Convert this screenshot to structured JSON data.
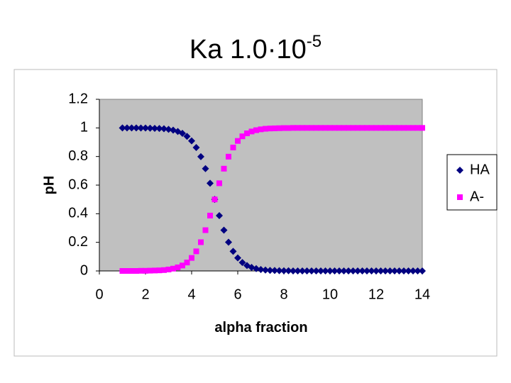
{
  "chart_data": {
    "type": "scatter",
    "title": "Ka 1.0·10",
    "title_superscript": "-5",
    "x_label": "alpha fraction",
    "y_label": "pH",
    "x": [
      1,
      1.2,
      1.4,
      1.6,
      1.8,
      2,
      2.2,
      2.4,
      2.6,
      2.8,
      3,
      3.2,
      3.4,
      3.6,
      3.8,
      4,
      4.2,
      4.4,
      4.6,
      4.8,
      5,
      5.2,
      5.4,
      5.6,
      5.8,
      6,
      6.2,
      6.4,
      6.6,
      6.8,
      7,
      7.2,
      7.4,
      7.6,
      7.8,
      8,
      8.2,
      8.4,
      8.6,
      8.8,
      9,
      9.2,
      9.4,
      9.6,
      9.8,
      10,
      10.2,
      10.4,
      10.6,
      10.8,
      11,
      11.2,
      11.4,
      11.6,
      11.8,
      12,
      12.2,
      12.4,
      12.6,
      12.8,
      13,
      13.2,
      13.4,
      13.6,
      13.8,
      14
    ],
    "series": [
      {
        "name": "HA",
        "color": "#000080",
        "marker": "diamond",
        "values": [
          1,
          1,
          1,
          1,
          0.999,
          0.999,
          0.998,
          0.997,
          0.996,
          0.994,
          0.99,
          0.984,
          0.975,
          0.962,
          0.941,
          0.909,
          0.863,
          0.799,
          0.715,
          0.613,
          0.5,
          0.387,
          0.285,
          0.201,
          0.137,
          0.091,
          0.059,
          0.038,
          0.025,
          0.016,
          0.01,
          0.006,
          0.004,
          0.003,
          0.002,
          0.001,
          0.001,
          0,
          0,
          0,
          0,
          0,
          0,
          0,
          0,
          0,
          0,
          0,
          0,
          0,
          0,
          0,
          0,
          0,
          0,
          0,
          0,
          0,
          0,
          0,
          0,
          0,
          0,
          0,
          0,
          0
        ]
      },
      {
        "name": "A-",
        "color": "#ff00ff",
        "marker": "square",
        "values": [
          0,
          0,
          0,
          0,
          0.001,
          0.001,
          0.002,
          0.003,
          0.004,
          0.006,
          0.01,
          0.016,
          0.025,
          0.038,
          0.059,
          0.091,
          0.137,
          0.201,
          0.285,
          0.387,
          0.5,
          0.613,
          0.715,
          0.799,
          0.863,
          0.909,
          0.941,
          0.962,
          0.975,
          0.984,
          0.99,
          0.994,
          0.996,
          0.997,
          0.998,
          0.999,
          0.999,
          1,
          1,
          1,
          1,
          1,
          1,
          1,
          1,
          1,
          1,
          1,
          1,
          1,
          1,
          1,
          1,
          1,
          1,
          1,
          1,
          1,
          1,
          1,
          1,
          1,
          1,
          1,
          1,
          1
        ]
      }
    ],
    "xlim": [
      0,
      14
    ],
    "xticks": [
      0,
      2,
      4,
      6,
      8,
      10,
      12,
      14
    ],
    "ylim": [
      0,
      1.2
    ],
    "yticks": [
      0,
      0.2,
      0.4,
      0.6,
      0.8,
      1,
      1.2
    ],
    "plot_background": "#c0c0c0",
    "grid": false,
    "legend": "right"
  }
}
